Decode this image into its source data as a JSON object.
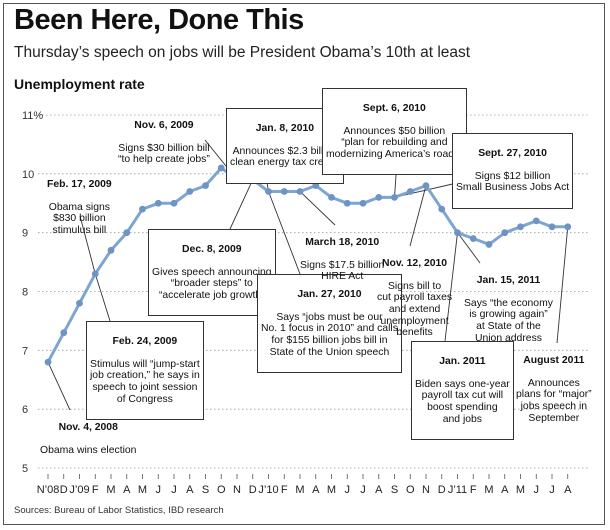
{
  "title": "Been Here, Done This",
  "subtitle": "Thursday’s speech on jobs will be President Obama’s 10th at least",
  "source": "Sources: Bureau of Labor Statistics, IBD research",
  "colors": {
    "line": "#7ea4d2",
    "marker": "#6f93c3",
    "grid": "#9a9a9a",
    "leader": "#333333"
  },
  "chart_data": {
    "type": "line",
    "title": "Been Here, Done This",
    "subtitle": "Thursday’s speech on jobs will be President Obama’s 10th at least",
    "ylabel": "Unemployment rate",
    "xlabel": "",
    "ylim": [
      5,
      11
    ],
    "yticks": [
      5,
      6,
      7,
      8,
      9,
      10,
      11
    ],
    "ytick_labels": [
      "5",
      "6",
      "7",
      "8",
      "9",
      "10",
      "11%"
    ],
    "x_tick_labels": [
      "N’08",
      "D",
      "J’09",
      "F",
      "M",
      "A",
      "M",
      "J",
      "J",
      "A",
      "S",
      "O",
      "N",
      "D",
      "J’10",
      "F",
      "M",
      "A",
      "M",
      "J",
      "J",
      "A",
      "S",
      "O",
      "N",
      "D",
      "J’11",
      "F",
      "M",
      "A",
      "M",
      "J",
      "J",
      "A"
    ],
    "grid": "horizontal dotted",
    "series": [
      {
        "values": [
          6.8,
          7.3,
          7.8,
          8.3,
          8.7,
          9.0,
          9.4,
          9.5,
          9.5,
          9.7,
          9.8,
          10.1,
          9.9,
          9.9,
          9.7,
          9.7,
          9.7,
          9.8,
          9.6,
          9.5,
          9.5,
          9.6,
          9.6,
          9.7,
          9.8,
          9.4,
          9.0,
          8.9,
          8.8,
          9.0,
          9.1,
          9.2,
          9.1,
          9.1
        ]
      }
    ],
    "annotations": [
      {
        "date": "Nov. 4, 2008",
        "text": "Obama wins election",
        "x_index": 0
      },
      {
        "date": "Feb. 17, 2009",
        "text": "Obama signs\n$830 billion\nstimulus bill",
        "x_index": 3
      },
      {
        "date": "Feb. 24, 2009",
        "text": "Stimulus will “jump-start\njob creation,” he says in\nspeech to joint session\nof Congress",
        "x_index": 3
      },
      {
        "date": "Nov. 6, 2009",
        "text": "Signs $30 billion bill\n“to help create jobs”",
        "x_index": 12
      },
      {
        "date": "Dec. 8, 2009",
        "text": "Gives speech announcing\n“broader steps” to\n“accelerate job growth”",
        "x_index": 13
      },
      {
        "date": "Jan. 8, 2010",
        "text": "Announces $2.3 billion\nclean energy tax credits",
        "x_index": 14
      },
      {
        "date": "Jan. 27, 2010",
        "text": "Says “jobs must be our\nNo. 1 focus in 2010” and calls\nfor $155 billion jobs bill in\nState of the Union speech",
        "x_index": 14
      },
      {
        "date": "March 18, 2010",
        "text": "Signs $17.5 billion\nHIRE Act",
        "x_index": 16
      },
      {
        "date": "Sept. 6, 2010",
        "text": "Announces $50 billion\n“plan for rebuilding and\nmodernizing America’s roads”",
        "x_index": 22
      },
      {
        "date": "Sept. 27, 2010",
        "text": "Signs $12 billion\nSmall Business Jobs Act",
        "x_index": 22
      },
      {
        "date": "Nov. 12, 2010",
        "text": "Signs bill to\ncut payroll taxes\nand extend\nunemployment\nbenefits",
        "x_index": 24
      },
      {
        "date": "Jan. 2011",
        "text": "Biden says one-year\npayroll tax cut will\nboost spending\nand jobs",
        "x_index": 26
      },
      {
        "date": "Jan. 15, 2011",
        "text": "Says “the economy\nis growing again”\nat State of the\nUnion address",
        "x_index": 26
      },
      {
        "date": "August 2011",
        "text": "Announces\nplans for “major”\njobs speech in\nSeptember",
        "x_index": 33
      }
    ]
  }
}
